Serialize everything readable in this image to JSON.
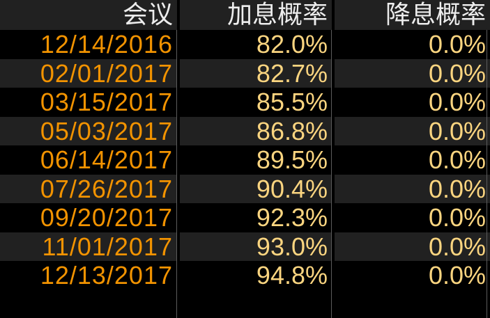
{
  "table": {
    "headers": {
      "meeting": "会议",
      "hike": "加息概率",
      "cut": "降息概率"
    },
    "rows": [
      {
        "meeting": "12/14/2016",
        "hike_prob": "82.0%",
        "cut_prob": "0.0%"
      },
      {
        "meeting": "02/01/2017",
        "hike_prob": "82.7%",
        "cut_prob": "0.0%"
      },
      {
        "meeting": "03/15/2017",
        "hike_prob": "85.5%",
        "cut_prob": "0.0%"
      },
      {
        "meeting": "05/03/2017",
        "hike_prob": "86.8%",
        "cut_prob": "0.0%"
      },
      {
        "meeting": "06/14/2017",
        "hike_prob": "89.5%",
        "cut_prob": "0.0%"
      },
      {
        "meeting": "07/26/2017",
        "hike_prob": "90.4%",
        "cut_prob": "0.0%"
      },
      {
        "meeting": "09/20/2017",
        "hike_prob": "92.3%",
        "cut_prob": "0.0%"
      },
      {
        "meeting": "11/01/2017",
        "hike_prob": "93.0%",
        "cut_prob": "0.0%"
      },
      {
        "meeting": "12/13/2017",
        "hike_prob": "94.8%",
        "cut_prob": "0.0%"
      }
    ]
  },
  "colors": {
    "background": "#000000",
    "header_bg": "#212121",
    "row_alt_bg": "#212121",
    "header_text": "#EDEDED",
    "date_text": "#F29300",
    "percent_text": "#FBD580",
    "grid_line": "#5C5C5C"
  },
  "chart_data": {
    "type": "table",
    "title": "",
    "columns": [
      "会议",
      "加息概率",
      "降息概率"
    ],
    "categories": [
      "12/14/2016",
      "02/01/2017",
      "03/15/2017",
      "05/03/2017",
      "06/14/2017",
      "07/26/2017",
      "09/20/2017",
      "11/01/2017",
      "12/13/2017"
    ],
    "series": [
      {
        "name": "加息概率",
        "values": [
          82.0,
          82.7,
          85.5,
          86.8,
          89.5,
          90.4,
          92.3,
          93.0,
          94.8
        ],
        "unit": "%"
      },
      {
        "name": "降息概率",
        "values": [
          0.0,
          0.0,
          0.0,
          0.0,
          0.0,
          0.0,
          0.0,
          0.0,
          0.0
        ],
        "unit": "%"
      }
    ],
    "layout": {
      "grid": "vertical-separators-only",
      "alternating_rows": true,
      "alignment": "right"
    }
  }
}
